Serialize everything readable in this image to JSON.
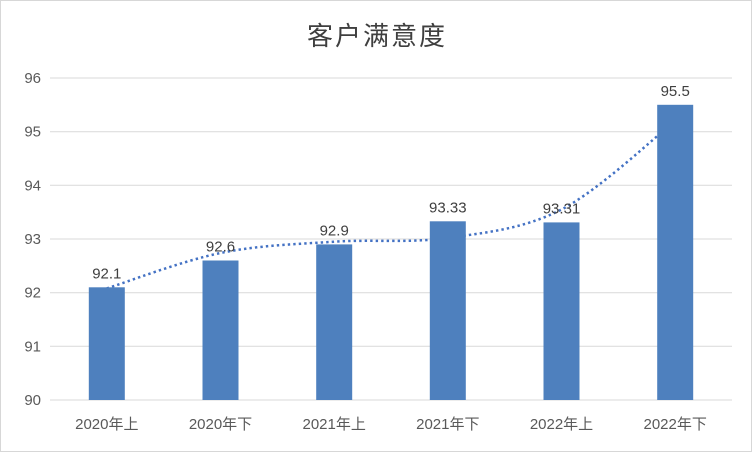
{
  "frame": {
    "background": "#ffffff",
    "border_color": "#d7d7d7"
  },
  "chart_data": {
    "type": "bar",
    "title": "客户满意度",
    "categories": [
      "2020年上",
      "2020年下",
      "2021年上",
      "2021年下",
      "2022年上",
      "2022年下"
    ],
    "values": [
      92.1,
      92.6,
      92.9,
      93.33,
      93.31,
      95.5
    ],
    "data_labels": [
      "92.1",
      "92.6",
      "92.9",
      "93.33",
      "93.31",
      "95.5"
    ],
    "xlabel": "",
    "ylabel": "",
    "ylim": [
      90,
      96
    ],
    "yticks": [
      90,
      91,
      92,
      93,
      94,
      95,
      96
    ],
    "grid": "horizontal",
    "legend": "none",
    "bar_color": "#4e80be",
    "gridline_color": "#d9d9d9",
    "tick_label_color": "#595959",
    "data_label_color": "#3f3f3f",
    "trendline": {
      "style": "dotted",
      "color": "#4472c4",
      "values_estimated": [
        92.08,
        92.74,
        92.95,
        93.02,
        93.55,
        95.2
      ],
      "drawn_behind_bars": true
    }
  }
}
